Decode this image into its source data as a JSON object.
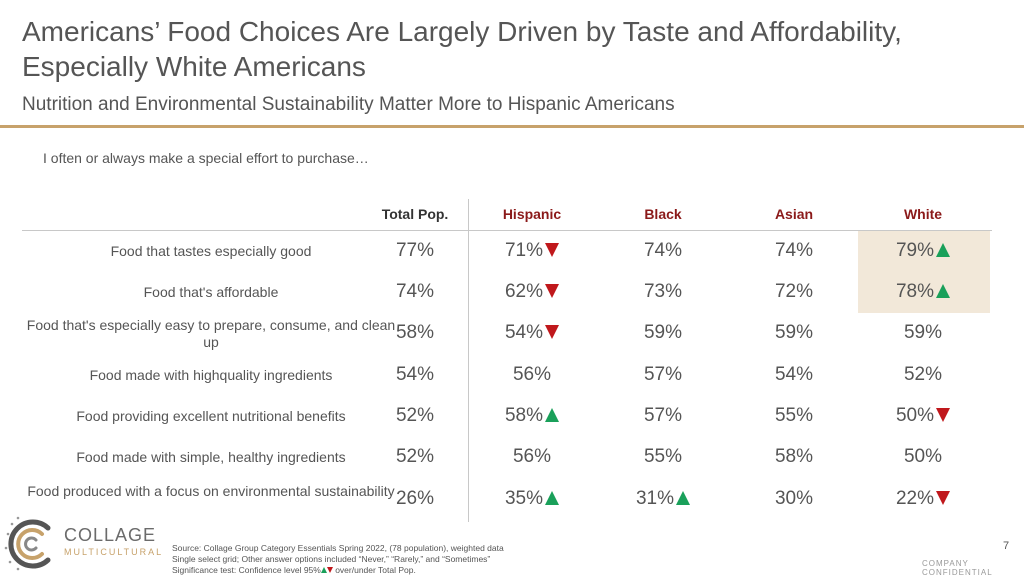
{
  "title": "Americans’ Food Choices Are Largely Driven by Taste and Affordability, Especially White Americans",
  "subtitle": "Nutrition and Environmental Sustainability Matter More to Hispanic Americans",
  "question": "I often or always make a special effort to purchase…",
  "columns": [
    "Total Pop.",
    "Hispanic",
    "Black",
    "Asian",
    "White"
  ],
  "rows": [
    {
      "label": "Food that tastes especially good",
      "values": [
        "77%",
        "71%",
        "74%",
        "74%",
        "79%"
      ],
      "sig": [
        "",
        "down",
        "",
        "",
        "up"
      ]
    },
    {
      "label": "Food that's affordable",
      "values": [
        "74%",
        "62%",
        "73%",
        "72%",
        "78%"
      ],
      "sig": [
        "",
        "down",
        "",
        "",
        "up"
      ]
    },
    {
      "label": "Food that's especially easy to prepare, consume, and clean up",
      "values": [
        "58%",
        "54%",
        "59%",
        "59%",
        "59%"
      ],
      "sig": [
        "",
        "down",
        "",
        "",
        ""
      ]
    },
    {
      "label": "Food made with highquality ingredients",
      "values": [
        "54%",
        "56%",
        "57%",
        "54%",
        "52%"
      ],
      "sig": [
        "",
        "",
        "",
        "",
        ""
      ]
    },
    {
      "label": "Food providing excellent nutritional benefits",
      "values": [
        "52%",
        "58%",
        "57%",
        "55%",
        "50%"
      ],
      "sig": [
        "",
        "up",
        "",
        "",
        "down"
      ]
    },
    {
      "label": "Food made with simple, healthy ingredients",
      "values": [
        "52%",
        "56%",
        "55%",
        "58%",
        "50%"
      ],
      "sig": [
        "",
        "",
        "",
        "",
        ""
      ]
    },
    {
      "label": "Food produced with a focus on environmental sustainability",
      "values": [
        "26%",
        "35%",
        "31%",
        "30%",
        "22%"
      ],
      "sig": [
        "",
        "up",
        "up",
        "",
        "down"
      ]
    }
  ],
  "highlight_color": "#f2e8d9",
  "colors": {
    "accent": "#c7a26b",
    "up": "#1aa05a",
    "down": "#c0181c",
    "header": "#8b1a1a"
  },
  "logo": {
    "name": "COLLAGE",
    "sub": "MULTICULTURAL"
  },
  "source": {
    "line1": "Source: Collage Group Category Essentials Spring 2022, (78 population), weighted data",
    "line2": "Single select grid; Other answer options included “Never,” “Rarely,” and “Sometimes”",
    "line3a": "Significance test: Confidence level 95%",
    "line3b": " over/under Total Pop."
  },
  "page_number": "7",
  "confidential": "COMPANY CONFIDENTIAL"
}
